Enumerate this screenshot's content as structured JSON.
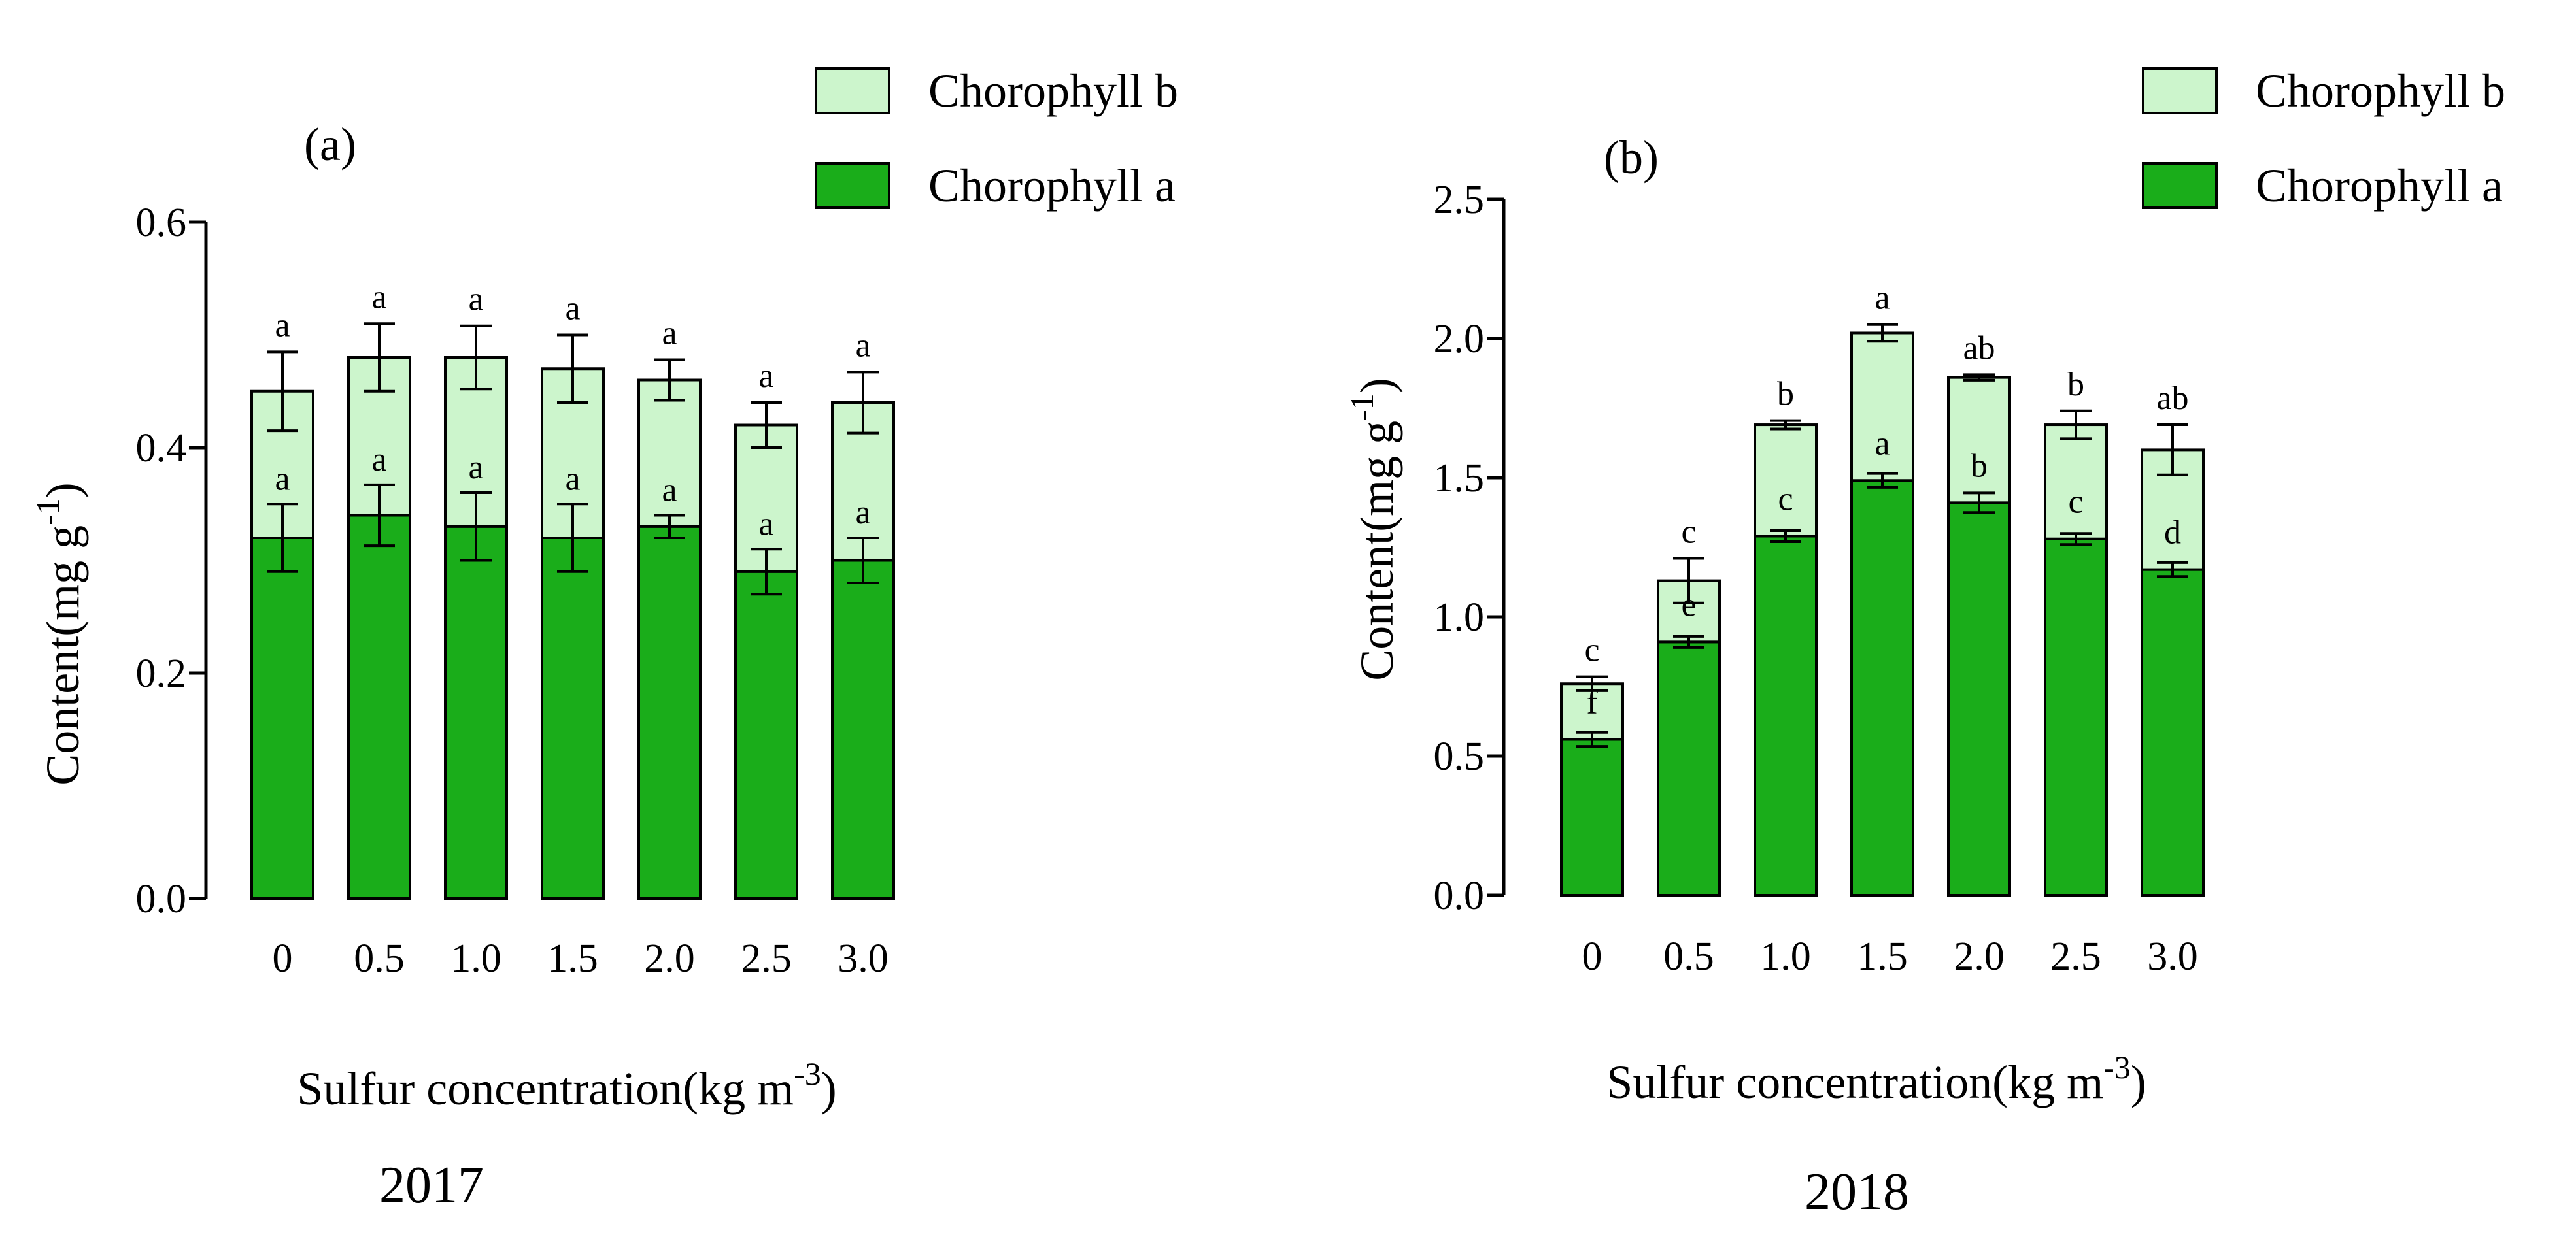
{
  "colors": {
    "chlorophyll_a": "#1aad1a",
    "chlorophyll_b": "#ccf5cc",
    "outline": "#000000"
  },
  "chart_data": [
    {
      "type": "bar",
      "stacked": true,
      "panel_label": "(a)",
      "year": "2017",
      "xlabel": "Sulfur concentration(kg m",
      "xlabel_sup": "-3",
      "xlabel_tail": ")",
      "ylabel": "Content(mg g",
      "ylabel_sup": "-1",
      "ylabel_tail": ")",
      "categories": [
        "0",
        "0.5",
        "1.0",
        "1.5",
        "2.0",
        "2.5",
        "3.0"
      ],
      "ylim": [
        0,
        0.6
      ],
      "yticks": [
        "0.0",
        "0.2",
        "0.4",
        "0.6"
      ],
      "ytick_values": [
        0,
        0.2,
        0.4,
        0.6
      ],
      "legend": [
        "Chorophyll b",
        "Chorophyll a"
      ],
      "legend_position": "top-right",
      "series": [
        {
          "name": "Chorophyll a",
          "values": [
            0.32,
            0.34,
            0.33,
            0.32,
            0.33,
            0.29,
            0.3
          ],
          "errors": [
            0.03,
            0.027,
            0.03,
            0.03,
            0.01,
            0.02,
            0.02
          ],
          "letters": [
            "a",
            "a",
            "a",
            "a",
            "a",
            "a",
            "a"
          ]
        },
        {
          "name": "Chorophyll b",
          "values": [
            0.13,
            0.14,
            0.15,
            0.15,
            0.13,
            0.13,
            0.14
          ],
          "errors": [
            0.035,
            0.03,
            0.028,
            0.03,
            0.018,
            0.02,
            0.027
          ],
          "letters": [
            "a",
            "a",
            "a",
            "a",
            "a",
            "a",
            "a"
          ]
        }
      ]
    },
    {
      "type": "bar",
      "stacked": true,
      "panel_label": "(b)",
      "year": "2018",
      "xlabel": "Sulfur concentration(kg m",
      "xlabel_sup": "-3",
      "xlabel_tail": ")",
      "ylabel": "Content(mg g",
      "ylabel_sup": "-1",
      "ylabel_tail": ")",
      "categories": [
        "0",
        "0.5",
        "1.0",
        "1.5",
        "2.0",
        "2.5",
        "3.0"
      ],
      "ylim": [
        0,
        2.5
      ],
      "yticks": [
        "0.0",
        "0.5",
        "1.0",
        "1.5",
        "2.0",
        "2.5"
      ],
      "ytick_values": [
        0,
        0.5,
        1.0,
        1.5,
        2.0,
        2.5
      ],
      "legend": [
        "Chorophyll b",
        "Chorophyll a"
      ],
      "legend_position": "top-right",
      "series": [
        {
          "name": "Chorophyll a",
          "values": [
            0.56,
            0.91,
            1.29,
            1.49,
            1.41,
            1.28,
            1.17
          ],
          "errors": [
            0.025,
            0.02,
            0.02,
            0.025,
            0.035,
            0.02,
            0.025
          ],
          "letters": [
            "f",
            "e",
            "c",
            "a",
            "b",
            "c",
            "d"
          ]
        },
        {
          "name": "Chorophyll b",
          "values": [
            0.2,
            0.22,
            0.4,
            0.53,
            0.45,
            0.41,
            0.43
          ],
          "errors": [
            0.025,
            0.08,
            0.015,
            0.03,
            0.01,
            0.05,
            0.09
          ],
          "letters": [
            "c",
            "c",
            "b",
            "a",
            "ab",
            "b",
            "ab"
          ]
        }
      ]
    }
  ]
}
